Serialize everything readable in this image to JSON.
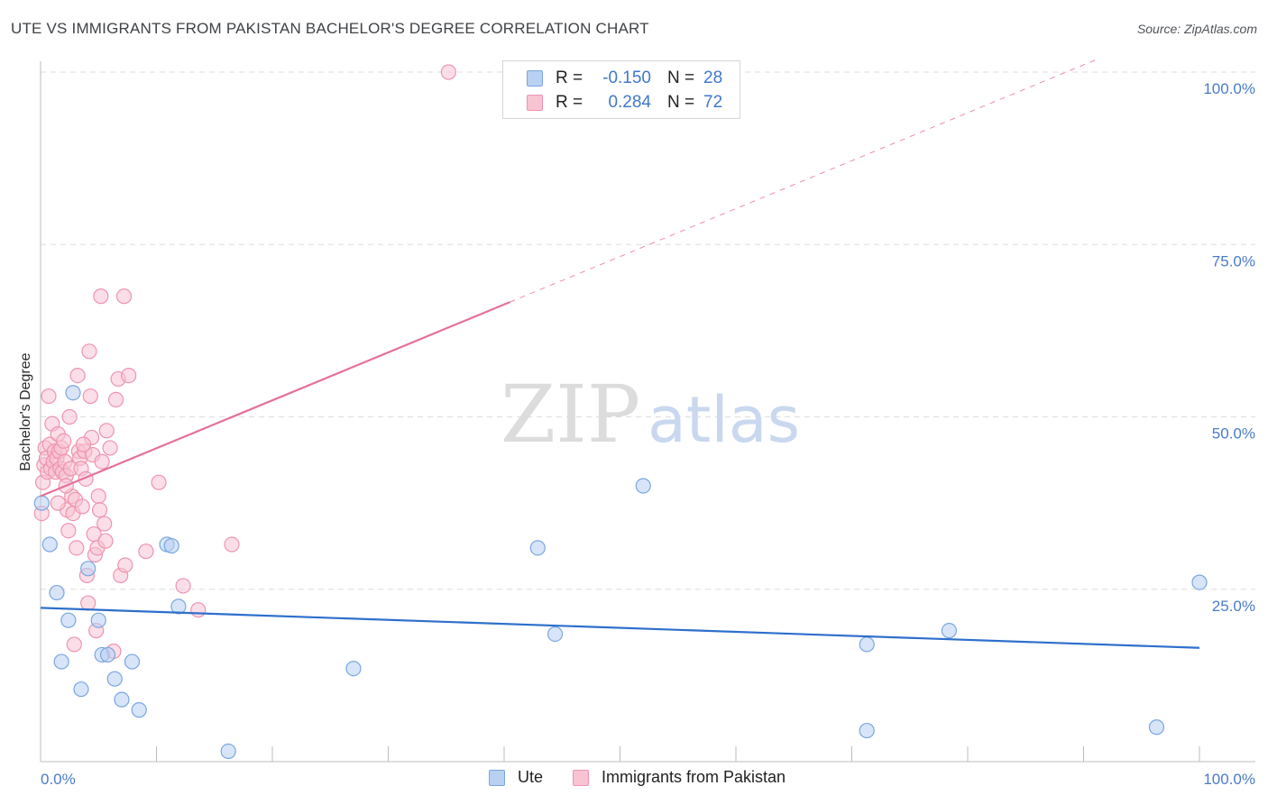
{
  "title": "UTE VS IMMIGRANTS FROM PAKISTAN BACHELOR'S DEGREE CORRELATION CHART",
  "source": "Source: ZipAtlas.com",
  "watermark": {
    "zip": "ZIP",
    "atlas": "atlas"
  },
  "colors": {
    "ute_fill": "#b8d0f2",
    "ute_stroke": "#7aa6e0",
    "ute_line": "#2e6fcc",
    "pak_fill": "#f8c3d3",
    "pak_stroke": "#ee94b0",
    "pak_line": "#e5719a",
    "grid": "#dddddd",
    "axis_text": "#4a7cc9"
  },
  "legend": {
    "ute": {
      "r_label": "R =",
      "r_value": "-0.150",
      "n_label": "N =",
      "n_value": "28"
    },
    "pak": {
      "r_label": "R =",
      "r_value": "0.284",
      "n_label": "N =",
      "n_value": "72"
    }
  },
  "bottom_legend": {
    "ute": "Ute",
    "pak": "Immigrants from Pakistan"
  },
  "chart_data": {
    "type": "scatter",
    "xlabel": "",
    "ylabel": "Bachelor's Degree",
    "xlim": [
      0,
      100
    ],
    "ylim": [
      0,
      100
    ],
    "x_tick_labels": [
      "0.0%",
      "100.0%"
    ],
    "y_ticks": [
      25,
      50,
      75,
      100
    ],
    "y_tick_labels": [
      "25.0%",
      "50.0%",
      "75.0%",
      "100.0%"
    ],
    "grid": true,
    "series": [
      {
        "name": "Ute",
        "r": -0.15,
        "n": 28,
        "trend": {
          "x": [
            0,
            100
          ],
          "y": [
            22.3,
            16.5
          ],
          "solid_until": 100
        },
        "points": [
          [
            0.1,
            37.5
          ],
          [
            0.8,
            31.5
          ],
          [
            1.4,
            24.5
          ],
          [
            1.8,
            14.5
          ],
          [
            2.4,
            20.5
          ],
          [
            2.8,
            53.5
          ],
          [
            3.5,
            10.5
          ],
          [
            4.1,
            28.0
          ],
          [
            5.0,
            20.5
          ],
          [
            5.3,
            15.5
          ],
          [
            5.8,
            15.5
          ],
          [
            6.4,
            12.0
          ],
          [
            7.0,
            9.0
          ],
          [
            7.9,
            14.5
          ],
          [
            8.5,
            7.5
          ],
          [
            10.9,
            31.5
          ],
          [
            11.3,
            31.3
          ],
          [
            11.9,
            22.5
          ],
          [
            16.2,
            1.5
          ],
          [
            27.0,
            13.5
          ],
          [
            42.9,
            31.0
          ],
          [
            44.4,
            18.5
          ],
          [
            52.0,
            40.0
          ],
          [
            71.3,
            17.0
          ],
          [
            71.3,
            4.5
          ],
          [
            78.4,
            19.0
          ],
          [
            96.3,
            5.0
          ],
          [
            100.0,
            26.0
          ]
        ]
      },
      {
        "name": "Immigrants from Pakistan",
        "r": 0.284,
        "n": 72,
        "trend": {
          "x": [
            0,
            100
          ],
          "y": [
            38.5,
            108.0
          ],
          "solid_until": 40.5
        },
        "points": [
          [
            0.1,
            36.0
          ],
          [
            0.2,
            40.5
          ],
          [
            0.3,
            43.0
          ],
          [
            0.4,
            45.5
          ],
          [
            0.5,
            44.0
          ],
          [
            0.6,
            42.0
          ],
          [
            0.7,
            53.0
          ],
          [
            0.8,
            46.0
          ],
          [
            0.9,
            42.5
          ],
          [
            1.0,
            49.0
          ],
          [
            1.1,
            43.5
          ],
          [
            1.2,
            45.0
          ],
          [
            1.3,
            42.0
          ],
          [
            1.4,
            44.0
          ],
          [
            1.5,
            47.5
          ],
          [
            1.6,
            45.0
          ],
          [
            1.7,
            42.5
          ],
          [
            1.8,
            45.5
          ],
          [
            1.9,
            42.0
          ],
          [
            2.0,
            46.5
          ],
          [
            2.1,
            43.5
          ],
          [
            2.2,
            41.5
          ],
          [
            2.3,
            36.5
          ],
          [
            2.4,
            33.5
          ],
          [
            2.5,
            50.0
          ],
          [
            2.6,
            42.5
          ],
          [
            2.7,
            38.5
          ],
          [
            2.8,
            36.0
          ],
          [
            2.9,
            17.0
          ],
          [
            3.0,
            38.0
          ],
          [
            3.1,
            31.0
          ],
          [
            3.2,
            56.0
          ],
          [
            3.3,
            45.0
          ],
          [
            3.4,
            44.0
          ],
          [
            3.5,
            42.5
          ],
          [
            3.6,
            37.0
          ],
          [
            3.8,
            45.0
          ],
          [
            3.9,
            41.0
          ],
          [
            4.0,
            27.0
          ],
          [
            4.1,
            23.0
          ],
          [
            4.2,
            59.5
          ],
          [
            4.3,
            53.0
          ],
          [
            4.4,
            47.0
          ],
          [
            4.5,
            44.5
          ],
          [
            4.6,
            33.0
          ],
          [
            4.7,
            30.0
          ],
          [
            4.8,
            19.0
          ],
          [
            4.9,
            31.0
          ],
          [
            5.0,
            38.5
          ],
          [
            5.1,
            36.5
          ],
          [
            5.2,
            67.5
          ],
          [
            5.3,
            43.5
          ],
          [
            5.5,
            34.5
          ],
          [
            5.6,
            32.0
          ],
          [
            5.7,
            48.0
          ],
          [
            6.0,
            45.5
          ],
          [
            6.3,
            16.0
          ],
          [
            6.5,
            52.5
          ],
          [
            6.7,
            55.5
          ],
          [
            6.9,
            27.0
          ],
          [
            7.2,
            67.5
          ],
          [
            7.3,
            28.5
          ],
          [
            7.6,
            56.0
          ],
          [
            9.1,
            30.5
          ],
          [
            10.2,
            40.5
          ],
          [
            12.3,
            25.5
          ],
          [
            13.6,
            22.0
          ],
          [
            16.5,
            31.5
          ],
          [
            35.2,
            100.0
          ],
          [
            1.5,
            37.5
          ],
          [
            2.2,
            40.0
          ],
          [
            3.7,
            46.0
          ]
        ]
      }
    ]
  }
}
